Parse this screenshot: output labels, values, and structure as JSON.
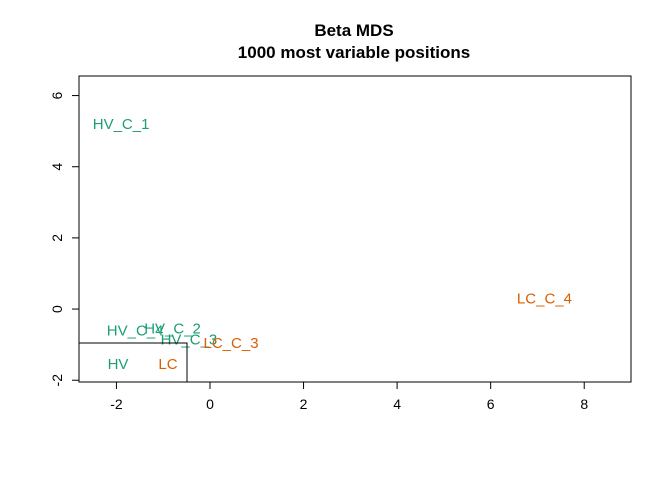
{
  "chart_data": {
    "type": "scatter",
    "title": "Beta MDS",
    "subtitle": "1000 most variable positions",
    "xlabel": "",
    "ylabel": "",
    "xlim": [
      -2.8,
      9.0
    ],
    "ylim": [
      -2.05,
      6.55
    ],
    "xticks": [
      -2,
      0,
      2,
      4,
      6,
      8
    ],
    "yticks": [
      -2,
      0,
      2,
      4,
      6
    ],
    "grid": false,
    "colors": {
      "HV": "#1B9E77",
      "LC": "#D95F02"
    },
    "points": [
      {
        "label": "HV_C_1",
        "group": "HV",
        "x": -1.9,
        "y": 5.2
      },
      {
        "label": "HV_C_2",
        "group": "HV",
        "x": -0.8,
        "y": -0.55
      },
      {
        "label": "HV_C_3",
        "group": "HV",
        "x": -0.45,
        "y": -0.85
      },
      {
        "label": "HV_C_4",
        "group": "HV",
        "x": -1.6,
        "y": -0.6
      },
      {
        "label": "LC_C_3",
        "group": "LC",
        "x": 0.45,
        "y": -0.95
      },
      {
        "label": "LC_C_4",
        "group": "LC",
        "x": 7.15,
        "y": 0.3
      }
    ],
    "legend": {
      "position": "bottom-left",
      "items": [
        {
          "label": "HV",
          "group": "HV"
        },
        {
          "label": "LC",
          "group": "LC"
        }
      ]
    }
  }
}
